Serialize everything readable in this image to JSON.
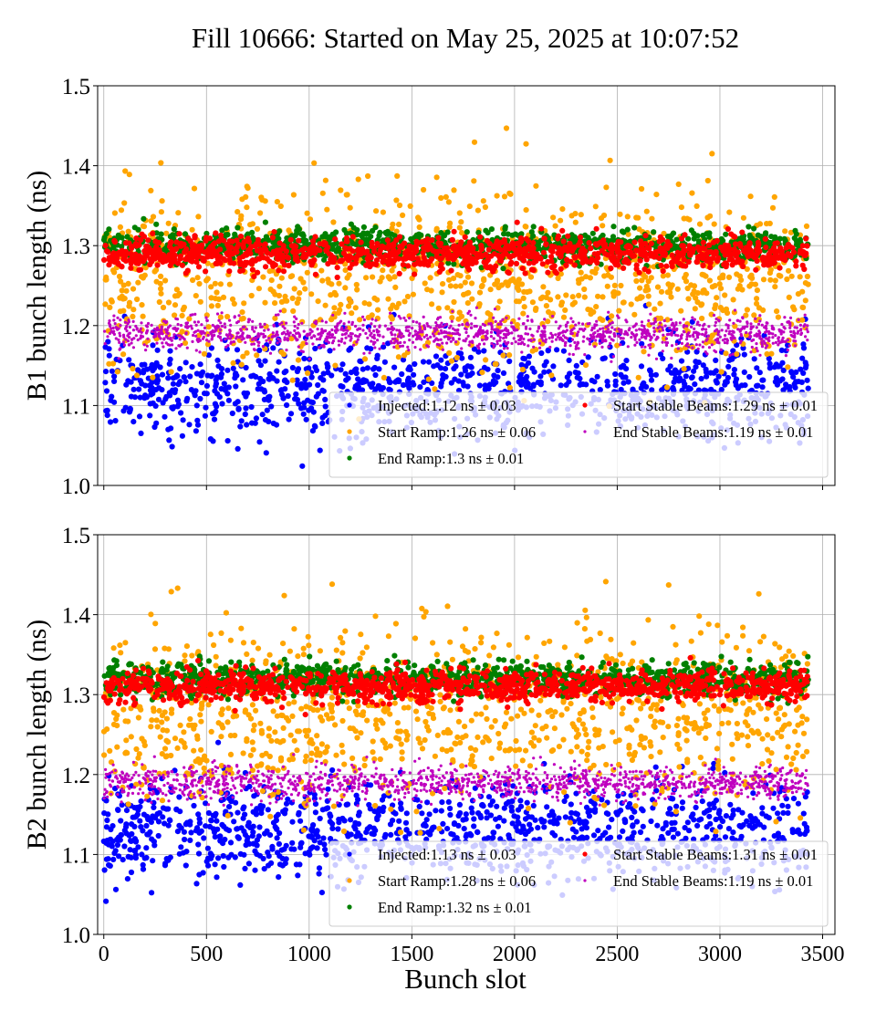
{
  "figure": {
    "title": "Fill 10666: Started on May 25, 2025 at 10:07:52",
    "xlabel": "Bunch slot"
  },
  "chart_data": [
    {
      "type": "scatter",
      "ylabel": "B1 bunch length (ns)",
      "xlim": [
        -30,
        3560
      ],
      "ylim": [
        1.0,
        1.5
      ],
      "x_ticks": [
        0,
        500,
        1000,
        1500,
        2000,
        2500,
        3000,
        3500
      ],
      "y_ticks": [
        1.0,
        1.1,
        1.2,
        1.3,
        1.4,
        1.5
      ],
      "show_x_tick_labels": false,
      "grid": true,
      "legend": "lower-right",
      "series": [
        {
          "name": "Injected:1.12 ns ± 0.03",
          "color": "#0000ff",
          "mean": 1.12,
          "std": 0.03,
          "x_range": [
            0,
            3430
          ]
        },
        {
          "name": "Start Ramp:1.26 ns ± 0.06",
          "color": "#ffa500",
          "mean": 1.26,
          "std": 0.06,
          "x_range": [
            0,
            3430
          ]
        },
        {
          "name": "End Ramp:1.3 ns ± 0.01",
          "color": "#008000",
          "mean": 1.3,
          "std": 0.01,
          "x_range": [
            0,
            3430
          ]
        },
        {
          "name": "Start Stable Beams:1.29 ns ± 0.01",
          "color": "#ff0000",
          "mean": 1.29,
          "std": 0.01,
          "x_range": [
            0,
            3430
          ]
        },
        {
          "name": "End Stable Beams:1.19 ns ± 0.01",
          "color": "#bf00bf",
          "mean": 1.19,
          "std": 0.01,
          "x_range": [
            0,
            3430
          ]
        }
      ]
    },
    {
      "type": "scatter",
      "ylabel": "B2 bunch length (ns)",
      "xlim": [
        -30,
        3560
      ],
      "ylim": [
        1.0,
        1.5
      ],
      "x_ticks": [
        0,
        500,
        1000,
        1500,
        2000,
        2500,
        3000,
        3500
      ],
      "y_ticks": [
        1.0,
        1.1,
        1.2,
        1.3,
        1.4,
        1.5
      ],
      "show_x_tick_labels": true,
      "grid": true,
      "legend": "lower-right",
      "series": [
        {
          "name": "Injected:1.13 ns ± 0.03",
          "color": "#0000ff",
          "mean": 1.13,
          "std": 0.03,
          "x_range": [
            0,
            3430
          ]
        },
        {
          "name": "Start Ramp:1.28 ns ± 0.06",
          "color": "#ffa500",
          "mean": 1.28,
          "std": 0.06,
          "x_range": [
            0,
            3430
          ]
        },
        {
          "name": "End Ramp:1.32 ns ± 0.01",
          "color": "#008000",
          "mean": 1.32,
          "std": 0.01,
          "x_range": [
            0,
            3430
          ]
        },
        {
          "name": "Start Stable Beams:1.31 ns ± 0.01",
          "color": "#ff0000",
          "mean": 1.31,
          "std": 0.01,
          "x_range": [
            0,
            3430
          ]
        },
        {
          "name": "End Stable Beams:1.19 ns ± 0.01",
          "color": "#bf00bf",
          "mean": 1.19,
          "std": 0.01,
          "x_range": [
            0,
            3430
          ]
        }
      ]
    }
  ]
}
